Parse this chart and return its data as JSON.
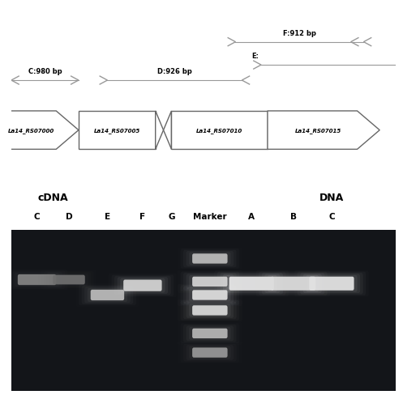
{
  "background_color": "#ffffff",
  "gene_labels": [
    "La14_RS07000",
    "La14_RS07005",
    "La14_RS07010",
    "La14_RS07015"
  ],
  "primer_C_label": "C:980 bp",
  "primer_D_label": "D:926 bp",
  "primer_F_label": "F:912 bp",
  "primer_E_label": "E:",
  "lane_labels": [
    "C",
    "D",
    "E",
    "F",
    "G",
    "Marker",
    "A",
    "B",
    "C"
  ],
  "cdna_label": "cDNA",
  "dna_label": "DNA",
  "gel_dark": "#111111",
  "band_bright": 230,
  "band_mid": 185,
  "band_dim": 130
}
